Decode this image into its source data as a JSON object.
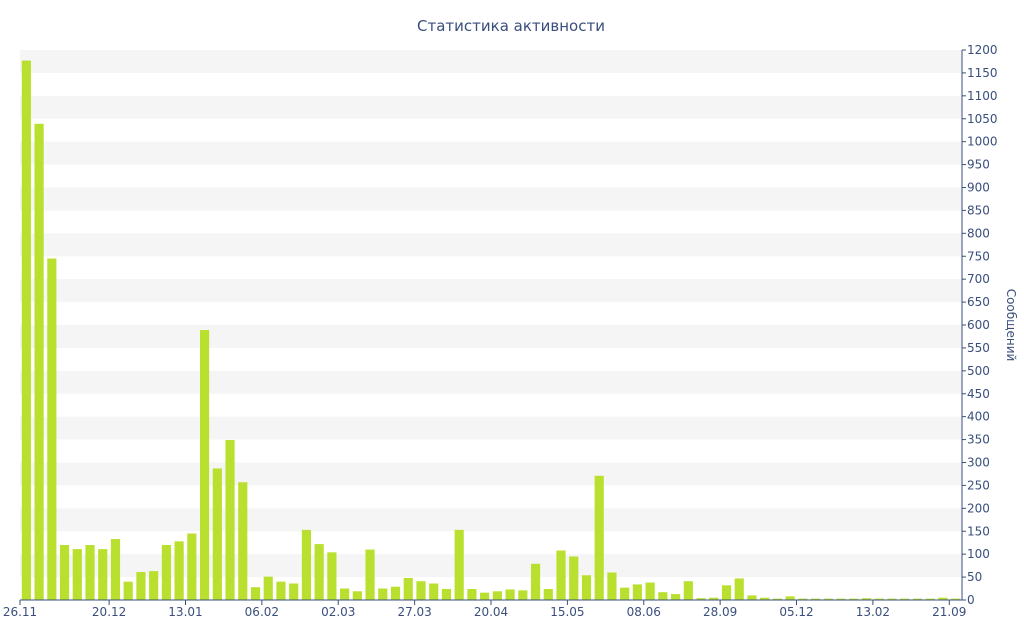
{
  "chart_data": {
    "type": "bar",
    "title": "Статистика активности",
    "ylabel": "Сообщений",
    "xlabel": "",
    "ylim": [
      0,
      1200
    ],
    "ytick_step": 50,
    "y_axis_side": "right",
    "grid": "alternating-bands",
    "colors": {
      "bar": "#b9e02e",
      "text": "#3a4f7c",
      "band": "#f5f5f5"
    },
    "x_tick_labels": [
      {
        "index": 0,
        "label": "26.11"
      },
      {
        "index": 7,
        "label": "20.12"
      },
      {
        "index": 13,
        "label": "13.01"
      },
      {
        "index": 19,
        "label": "06.02"
      },
      {
        "index": 25,
        "label": "02.03"
      },
      {
        "index": 31,
        "label": "27.03"
      },
      {
        "index": 37,
        "label": "20.04"
      },
      {
        "index": 43,
        "label": "15.05"
      },
      {
        "index": 49,
        "label": "08.06"
      },
      {
        "index": 55,
        "label": "28.09"
      },
      {
        "index": 61,
        "label": "05.12"
      },
      {
        "index": 67,
        "label": "13.02"
      },
      {
        "index": 73,
        "label": "21.09"
      }
    ],
    "values": [
      1177,
      1039,
      745,
      120,
      111,
      120,
      111,
      133,
      40,
      61,
      63,
      120,
      128,
      145,
      589,
      287,
      349,
      257,
      28,
      51,
      40,
      36,
      153,
      122,
      104,
      25,
      19,
      110,
      25,
      29,
      48,
      41,
      36,
      24,
      153,
      24,
      16,
      19,
      23,
      21,
      79,
      24,
      108,
      95,
      54,
      271,
      60,
      27,
      34,
      38,
      17,
      13,
      41,
      4,
      5,
      32,
      47,
      10,
      5,
      3,
      8,
      3,
      3,
      3,
      3,
      3,
      4,
      3,
      3,
      3,
      3,
      3,
      5,
      3
    ]
  }
}
